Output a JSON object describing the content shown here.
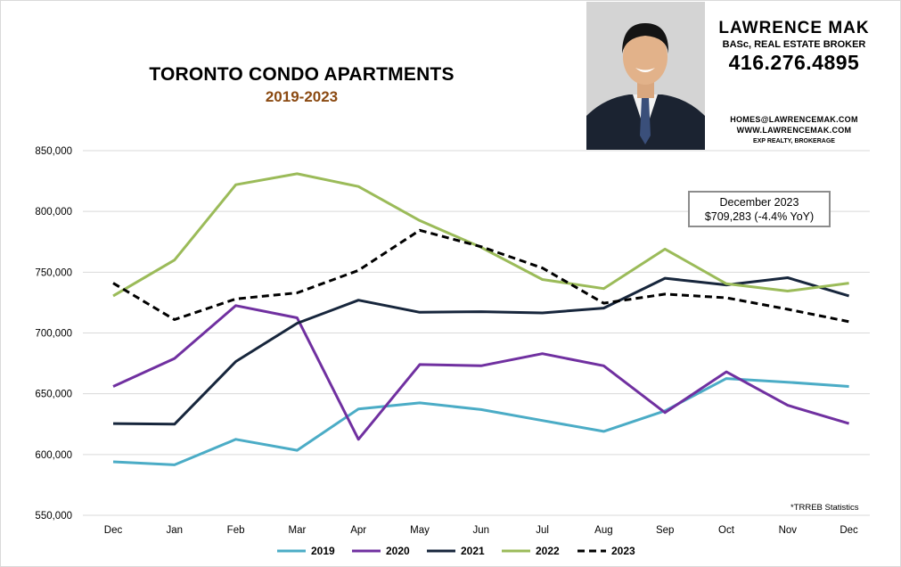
{
  "header": {
    "title": "TORONTO CONDO APARTMENTS",
    "subtitle": "2019-2023"
  },
  "agent": {
    "name": "LAWRENCE MAK",
    "credentials": "BASc, REAL ESTATE BROKER",
    "phone": "416.276.4895",
    "email": "HOMES@LAWRENCEMAK.COM",
    "website": "WWW.LAWRENCEMAK.COM",
    "brokerage": "EXP REALTY, BROKERAGE"
  },
  "callout": {
    "line1": "December 2023",
    "line2": "$709,283  (-4.4%  YoY)"
  },
  "source_note": "*TRREB Statistics",
  "chart_data": {
    "type": "line",
    "title": "TORONTO CONDO APARTMENTS",
    "subtitle": "2019-2023",
    "xlabel": "",
    "ylabel": "",
    "categories": [
      "Dec",
      "Jan",
      "Feb",
      "Mar",
      "Apr",
      "May",
      "Jun",
      "Jul",
      "Aug",
      "Sep",
      "Oct",
      "Nov",
      "Dec"
    ],
    "ylim": [
      550000,
      850000
    ],
    "yticks": [
      550000,
      600000,
      650000,
      700000,
      750000,
      800000,
      850000
    ],
    "ytick_labels": [
      "550,000",
      "600,000",
      "650,000",
      "700,000",
      "750,000",
      "800,000",
      "850,000"
    ],
    "grid": true,
    "legend_position": "bottom",
    "series": [
      {
        "name": "2019",
        "color": "#4bacc6",
        "dash": "solid",
        "values": [
          594000,
          591500,
          612500,
          603500,
          637500,
          642500,
          637000,
          628000,
          619000,
          636000,
          662500,
          659500,
          656000
        ]
      },
      {
        "name": "2020",
        "color": "#7030a0",
        "dash": "solid",
        "values": [
          656000,
          679000,
          722500,
          712500,
          612500,
          674000,
          673000,
          683000,
          673000,
          634500,
          668000,
          640500,
          625500
        ]
      },
      {
        "name": "2021",
        "color": "#17263c",
        "dash": "solid",
        "values": [
          625500,
          625000,
          676500,
          708000,
          727000,
          717000,
          717500,
          716500,
          720500,
          745000,
          739500,
          745500,
          730500
        ]
      },
      {
        "name": "2022",
        "color": "#9bbb59",
        "dash": "solid",
        "values": [
          730500,
          760000,
          822000,
          831000,
          820500,
          792500,
          770500,
          744000,
          736500,
          769000,
          740500,
          734500,
          741000
        ]
      },
      {
        "name": "2023",
        "color": "#000000",
        "dash": "dashed",
        "values": [
          741000,
          711000,
          728000,
          733000,
          751500,
          784500,
          771000,
          753500,
          724500,
          732000,
          729000,
          719500,
          709283
        ]
      }
    ]
  }
}
